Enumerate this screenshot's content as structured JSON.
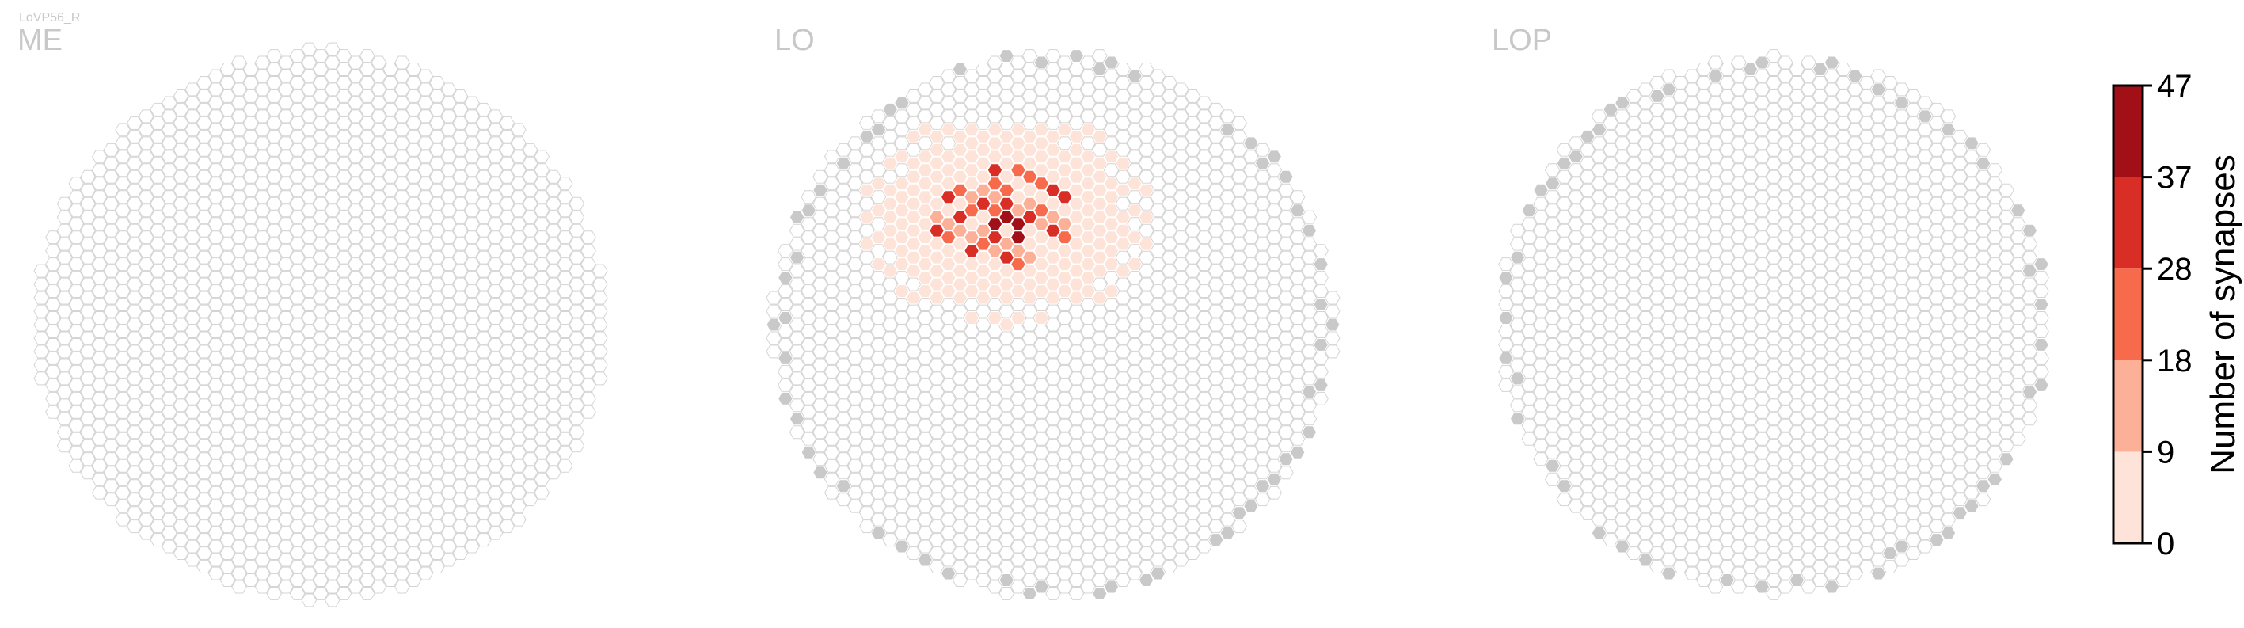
{
  "cell_type_label": "LoVP56_R",
  "colors": {
    "grid_outline": "#d4d4d4",
    "boundary_fill": "#c9c9c9",
    "title_color": "#c8c8c8",
    "scale": [
      "#fde3d8",
      "#fcb098",
      "#f86a4c",
      "#d92e26",
      "#a10f17"
    ]
  },
  "chart_data": {
    "type": "heatmap",
    "panels": [
      {
        "name": "ME"
      },
      {
        "name": "LO"
      },
      {
        "name": "LOP"
      }
    ],
    "colorbar": {
      "label": "Number of synapses",
      "ticks": [
        "0",
        "9",
        "18",
        "28",
        "37",
        "47"
      ],
      "range": [
        0,
        47
      ]
    },
    "lo_hotspot": {
      "description_none": "",
      "cells": [
        {
          "c": 0,
          "r": 0,
          "v": 44
        },
        {
          "c": 1,
          "r": 0,
          "v": 40
        },
        {
          "c": -1,
          "r": 0,
          "v": 38
        },
        {
          "c": 0,
          "r": -1,
          "v": 33
        },
        {
          "c": 1,
          "r": 1,
          "v": 45
        },
        {
          "c": -1,
          "r": 1,
          "v": 30
        },
        {
          "c": 2,
          "r": 0,
          "v": 31
        },
        {
          "c": -2,
          "r": -1,
          "v": 34
        },
        {
          "c": 0,
          "r": -2,
          "v": 25
        },
        {
          "c": -3,
          "r": -1,
          "v": 22
        },
        {
          "c": 3,
          "r": -1,
          "v": 26
        },
        {
          "c": -4,
          "r": 0,
          "v": 33
        },
        {
          "c": -6,
          "r": 1,
          "v": 35
        },
        {
          "c": 4,
          "r": -2,
          "v": 29
        },
        {
          "c": 2,
          "r": -3,
          "v": 27
        },
        {
          "c": -1,
          "r": -3,
          "v": 20
        },
        {
          "c": 1,
          "r": -4,
          "v": 21
        }
      ]
    }
  }
}
